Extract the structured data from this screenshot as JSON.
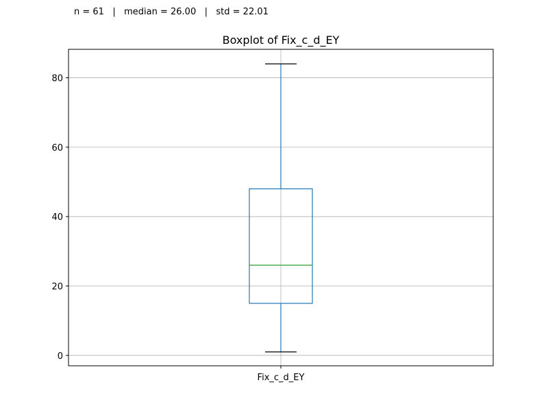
{
  "stats_text": "n = 61   |   median = 26.00   |   std = 22.01",
  "chart_data": {
    "type": "box",
    "title": "Boxplot of Fix_c_d_EY",
    "xlabel": "",
    "ylabel": "",
    "categories": [
      "Fix_c_d_EY"
    ],
    "boxes": [
      {
        "whisker_low": 1,
        "q1": 15,
        "median": 26,
        "q3": 48,
        "whisker_high": 84
      }
    ],
    "ylim": [
      -3,
      88.2
    ],
    "yticks": [
      0,
      20,
      40,
      60,
      80
    ],
    "grid": true,
    "colors": {
      "box": "#1f77b4",
      "median": "#2ca02c",
      "caps": "#000000",
      "grid": "#b0b0b0"
    }
  }
}
